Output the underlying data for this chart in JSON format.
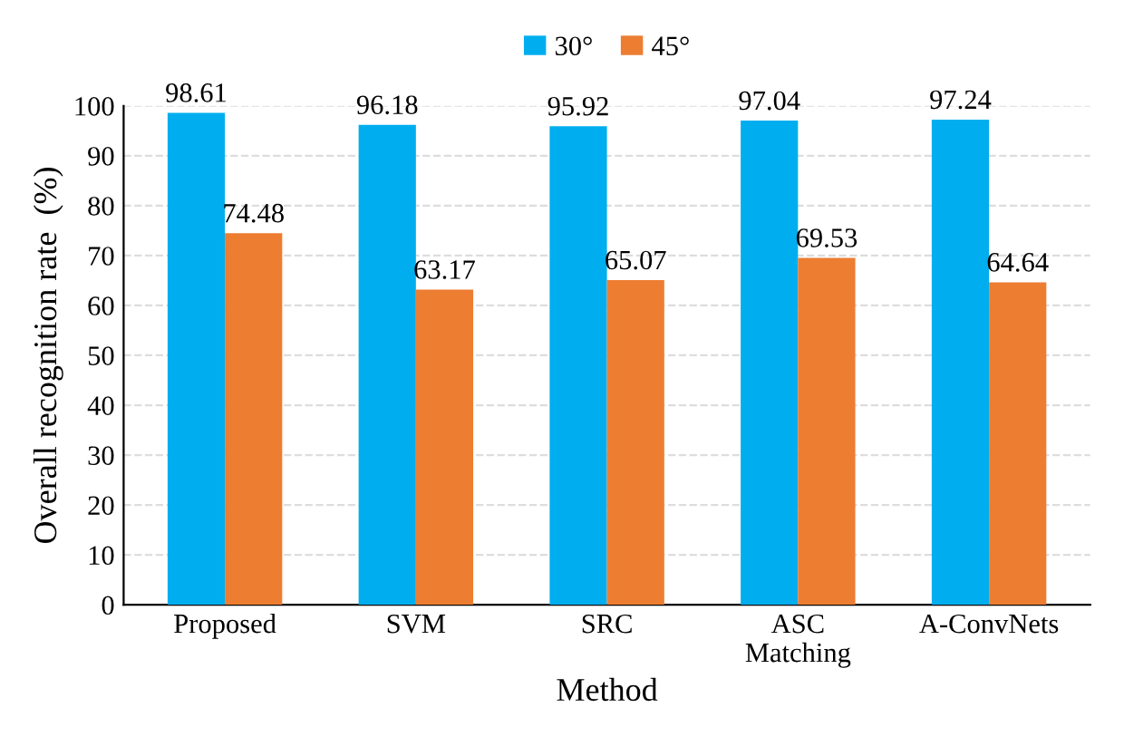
{
  "chart_data": {
    "type": "bar",
    "xlabel": "Method",
    "ylabel": "Overall recognition rate  (%)",
    "categories": [
      "Proposed",
      "SVM",
      "SRC",
      "ASC\nMatching",
      "A-ConvNets"
    ],
    "series": [
      {
        "name": "30°",
        "color": "#00aeef",
        "values": [
          98.61,
          96.18,
          95.92,
          97.04,
          97.24
        ]
      },
      {
        "name": "45°",
        "color": "#ed7d31",
        "values": [
          74.48,
          63.17,
          65.07,
          69.53,
          64.64
        ]
      }
    ],
    "ylim": [
      0,
      100
    ],
    "yticks": [
      0,
      10,
      20,
      30,
      40,
      50,
      60,
      70,
      80,
      90,
      100
    ],
    "grid": "y",
    "legend": "top",
    "data_labels": true
  }
}
